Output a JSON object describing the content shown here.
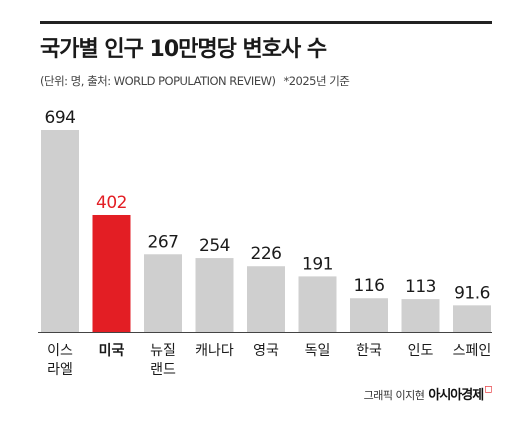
{
  "header": {
    "title": "국가별 인구 10만명당 변호사 수",
    "source": "(단위: 명, 출처: WORLD POPULATION REVIEW)",
    "note": "*2025년 기준"
  },
  "chart_data": {
    "type": "bar",
    "title": "국가별 인구 10만명당 변호사 수",
    "categories": [
      [
        "이스",
        "라엘"
      ],
      [
        "미국"
      ],
      [
        "뉴질",
        "랜드"
      ],
      [
        "캐나다"
      ],
      [
        "영국"
      ],
      [
        "독일"
      ],
      [
        "한국"
      ],
      [
        "인도"
      ],
      [
        "스페인"
      ]
    ],
    "values": [
      694,
      402,
      267,
      254,
      226,
      191,
      116,
      113,
      91.6
    ],
    "value_labels": [
      "694",
      "402",
      "267",
      "254",
      "226",
      "191",
      "116",
      "113",
      "91.6"
    ],
    "highlight_index": 1,
    "colors": {
      "bar": "#cfcfcf",
      "highlight": "#e31e24",
      "label": "#1a1a1a",
      "highlight_label": "#e31e24"
    },
    "ylim": [
      0,
      694
    ],
    "grid": false,
    "legend": "none"
  },
  "credit": {
    "author": "그래픽 이지현",
    "brand": "아시아경제"
  }
}
